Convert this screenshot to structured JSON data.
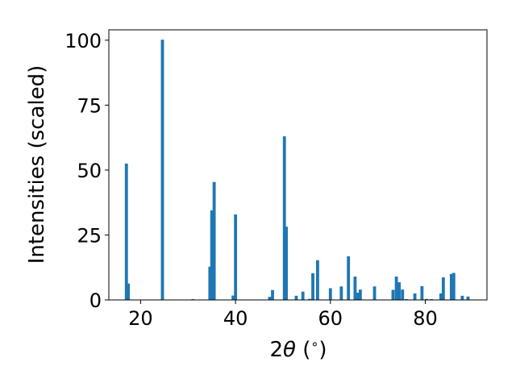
{
  "chart_data": {
    "type": "bar",
    "xlabel_parts": [
      "2",
      "θ",
      " (",
      "∘",
      ")"
    ],
    "ylabel": "Intensities (scaled)",
    "xlim": [
      13.3,
      93.0
    ],
    "ylim": [
      0,
      104
    ],
    "xticks": [
      20,
      40,
      60,
      80
    ],
    "yticks": [
      0,
      25,
      50,
      75,
      100
    ],
    "bar_color": "#1f77b4",
    "bar_width": 0.65,
    "x": [
      17.0,
      17.4,
      24.6,
      31.0,
      34.6,
      35.0,
      35.5,
      39.5,
      40.0,
      47.2,
      47.8,
      50.3,
      50.7,
      52.8,
      54.2,
      55.6,
      56.3,
      57.3,
      60.0,
      62.3,
      63.8,
      65.2,
      65.8,
      66.3,
      69.3,
      73.2,
      73.9,
      74.5,
      75.2,
      76.0,
      77.8,
      79.3,
      80.3,
      81.3,
      83.3,
      83.8,
      85.5,
      86.0,
      87.8,
      89.0
    ],
    "values": [
      52.5,
      6.3,
      100.2,
      0.3,
      12.8,
      34.5,
      45.4,
      1.7,
      32.9,
      1.2,
      3.8,
      63.0,
      28.2,
      1.6,
      3.2,
      0.4,
      10.3,
      15.3,
      4.5,
      5.2,
      16.8,
      9.0,
      2.8,
      4.0,
      5.2,
      3.9,
      9.0,
      6.8,
      4.0,
      0.3,
      2.5,
      5.3,
      0.4,
      0.3,
      2.5,
      8.7,
      10.0,
      10.4,
      1.6,
      1.3
    ]
  }
}
